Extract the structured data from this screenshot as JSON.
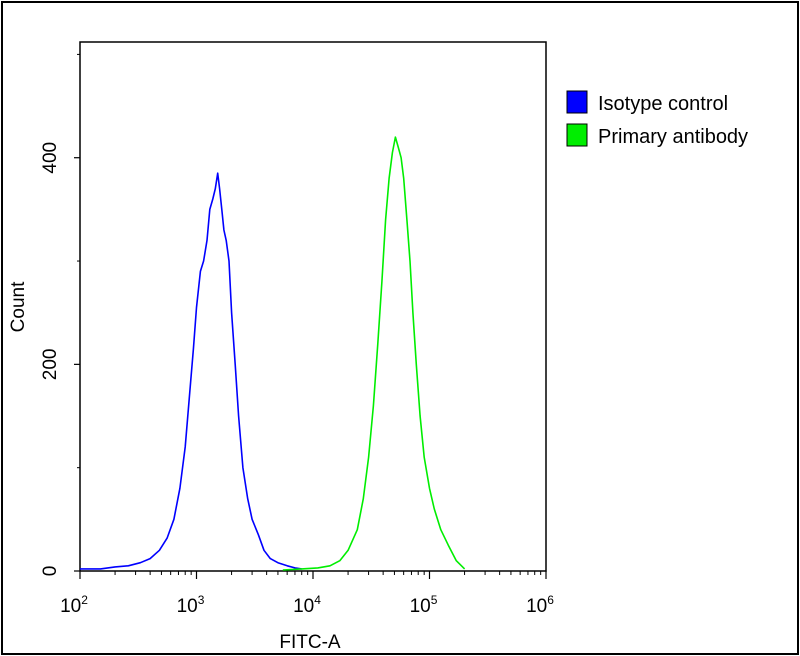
{
  "chart_data": {
    "type": "line",
    "title": "",
    "xlabel": "FITC-A",
    "ylabel": "Count",
    "xscale": "log",
    "xlim": [
      100,
      1000000
    ],
    "ylim": [
      0,
      512
    ],
    "x_tick_labels": [
      {
        "value": 100,
        "base": "10",
        "exp": "2"
      },
      {
        "value": 1000,
        "base": "10",
        "exp": "3"
      },
      {
        "value": 10000,
        "base": "10",
        "exp": "4"
      },
      {
        "value": 100000,
        "base": "10",
        "exp": "5"
      },
      {
        "value": 1000000,
        "base": "10",
        "exp": "6"
      }
    ],
    "y_ticks": [
      0,
      200,
      400
    ],
    "grid": false,
    "legend_position": "right",
    "series": [
      {
        "name": "Isotype control",
        "color": "#0000ff",
        "points": [
          [
            100,
            2
          ],
          [
            150,
            2
          ],
          [
            200,
            4
          ],
          [
            260,
            5
          ],
          [
            330,
            8
          ],
          [
            400,
            12
          ],
          [
            480,
            20
          ],
          [
            560,
            32
          ],
          [
            640,
            50
          ],
          [
            720,
            80
          ],
          [
            800,
            120
          ],
          [
            870,
            170
          ],
          [
            940,
            215
          ],
          [
            1000,
            255
          ],
          [
            1080,
            290
          ],
          [
            1150,
            300
          ],
          [
            1230,
            320
          ],
          [
            1300,
            350
          ],
          [
            1380,
            360
          ],
          [
            1450,
            370
          ],
          [
            1520,
            385
          ],
          [
            1580,
            370
          ],
          [
            1650,
            350
          ],
          [
            1720,
            330
          ],
          [
            1800,
            320
          ],
          [
            1900,
            300
          ],
          [
            2000,
            250
          ],
          [
            2150,
            200
          ],
          [
            2300,
            150
          ],
          [
            2500,
            100
          ],
          [
            2750,
            70
          ],
          [
            3000,
            50
          ],
          [
            3400,
            35
          ],
          [
            3800,
            20
          ],
          [
            4300,
            12
          ],
          [
            5000,
            8
          ],
          [
            6000,
            5
          ],
          [
            7000,
            3
          ],
          [
            8000,
            2
          ]
        ]
      },
      {
        "name": "Primary antibody",
        "color": "#00ee00",
        "points": [
          [
            5500,
            1
          ],
          [
            8000,
            2
          ],
          [
            11000,
            3
          ],
          [
            14000,
            5
          ],
          [
            17000,
            10
          ],
          [
            20000,
            20
          ],
          [
            24000,
            40
          ],
          [
            27000,
            70
          ],
          [
            30000,
            110
          ],
          [
            33000,
            160
          ],
          [
            36000,
            220
          ],
          [
            39000,
            280
          ],
          [
            42000,
            340
          ],
          [
            45000,
            380
          ],
          [
            48000,
            405
          ],
          [
            51000,
            420
          ],
          [
            54000,
            410
          ],
          [
            57000,
            400
          ],
          [
            60000,
            380
          ],
          [
            64000,
            340
          ],
          [
            68000,
            300
          ],
          [
            72000,
            250
          ],
          [
            77000,
            200
          ],
          [
            83000,
            150
          ],
          [
            90000,
            110
          ],
          [
            100000,
            80
          ],
          [
            110000,
            60
          ],
          [
            125000,
            40
          ],
          [
            145000,
            25
          ],
          [
            170000,
            10
          ],
          [
            200000,
            2
          ]
        ]
      }
    ]
  }
}
